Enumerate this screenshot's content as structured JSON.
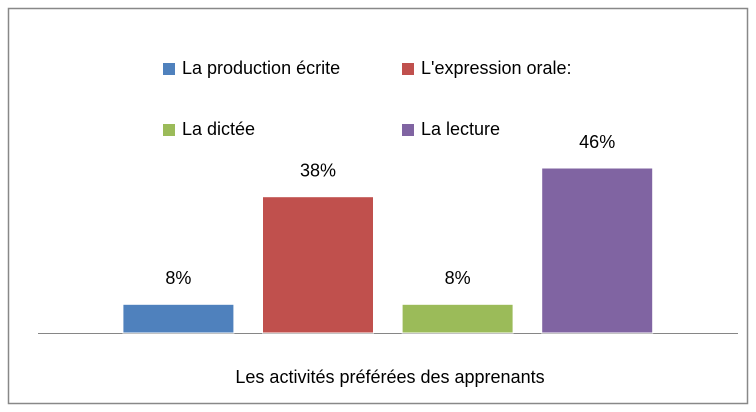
{
  "chart_data": {
    "type": "bar",
    "x_label": "Les activités préférées des apprenants",
    "categories": [
      "La production écrite",
      "L'expression orale:",
      "La dictée",
      "La lecture"
    ],
    "values": [
      8,
      38,
      8,
      46
    ],
    "value_labels": [
      "8%",
      "38%",
      "8%",
      "46%"
    ],
    "colors": [
      "#4f81bd",
      "#c0504d",
      "#9bbb59",
      "#8064a2"
    ],
    "legend": "top"
  }
}
